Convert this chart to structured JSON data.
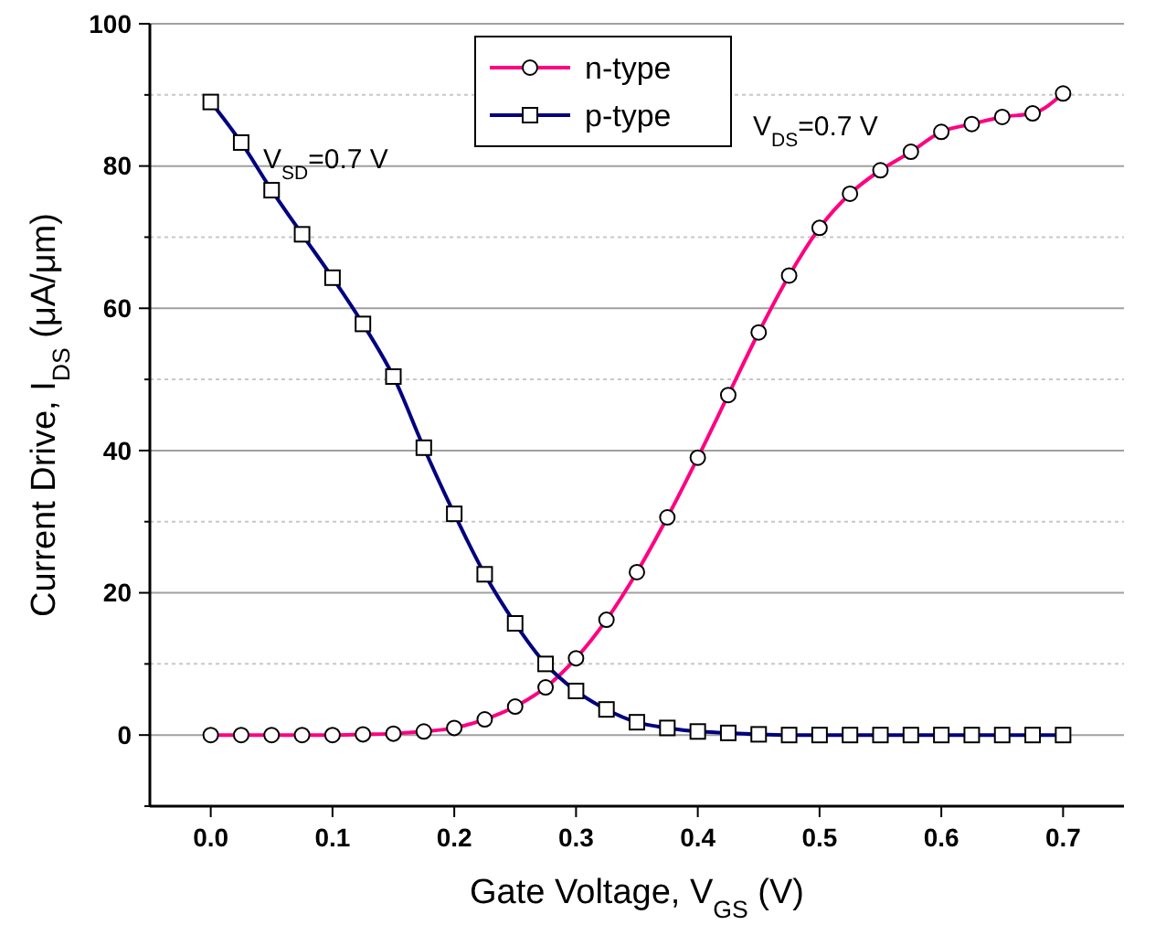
{
  "chart_data": {
    "type": "line",
    "xlabel": "Gate Voltage, V$_{GS}$ (V)",
    "ylabel": "Current Drive, I$_{DS}$ (μA/μm)",
    "annotations": [
      "V$_{SD}$=0.7 V",
      "V$_{DS}$=0.7 V"
    ],
    "x": [
      0,
      0.025,
      0.05,
      0.075,
      0.1,
      0.125,
      0.15,
      0.175,
      0.2,
      0.225,
      0.25,
      0.275,
      0.3,
      0.325,
      0.35,
      0.375,
      0.4,
      0.425,
      0.45,
      0.475,
      0.5,
      0.525,
      0.55,
      0.575,
      0.6,
      0.625,
      0.65,
      0.675,
      0.7
    ],
    "series": [
      {
        "name": "n-type",
        "color": "#ff0080",
        "marker": "circle",
        "values": [
          0,
          0,
          0,
          0,
          0,
          0.1,
          0.2,
          0.5,
          1,
          2.2,
          4,
          6.7,
          10.8,
          16.2,
          22.9,
          30.6,
          39,
          47.8,
          56.6,
          64.6,
          71.3,
          76.1,
          79.4,
          82,
          84.8,
          85.9,
          86.9,
          87.4,
          90.2
        ]
      },
      {
        "name": "p-type",
        "color": "#000080",
        "marker": "square",
        "values": [
          89,
          83.3,
          76.6,
          70.4,
          64.3,
          57.8,
          50.4,
          40.4,
          31.1,
          22.6,
          15.7,
          10,
          6.2,
          3.6,
          1.8,
          1,
          0.5,
          0.3,
          0.1,
          0,
          0,
          0,
          0,
          0,
          0,
          0,
          0,
          0,
          0
        ]
      }
    ],
    "xlim": [
      -0.05,
      0.75
    ],
    "ylim": [
      -10,
      100
    ],
    "xticks": [
      {
        "value": 0,
        "label": "0.0"
      },
      0.1,
      0.2,
      0.3,
      0.4,
      0.5,
      0.6,
      0.7
    ],
    "yticks": [
      {
        "value": -10,
        "label": null
      },
      0,
      {
        "value": 10,
        "label": null
      },
      20,
      {
        "value": 30,
        "label": null
      },
      40,
      {
        "value": 50,
        "label": null
      },
      60,
      {
        "value": 70,
        "label": null
      },
      80,
      {
        "value": 90,
        "label": null
      },
      100
    ],
    "grid": "y",
    "legend": "top",
    "line_style": "solid"
  }
}
